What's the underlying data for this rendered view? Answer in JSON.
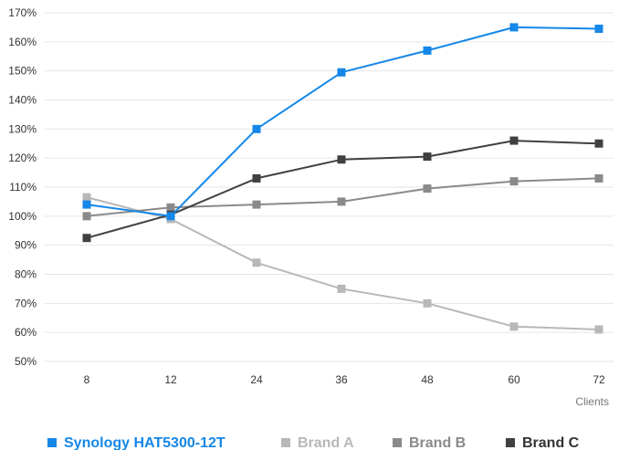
{
  "chart_data": {
    "type": "line",
    "title": "",
    "xlabel": "Clients",
    "ylabel": "",
    "x": [
      8,
      12,
      24,
      36,
      48,
      60,
      72
    ],
    "categories": [
      "8",
      "12",
      "24",
      "36",
      "48",
      "60",
      "72"
    ],
    "ylim": [
      50,
      170
    ],
    "yticks": [
      50,
      60,
      70,
      80,
      90,
      100,
      110,
      120,
      130,
      140,
      150,
      160,
      170
    ],
    "ytick_labels": [
      "50%",
      "60%",
      "70%",
      "80%",
      "90%",
      "100%",
      "110%",
      "120%",
      "130%",
      "140%",
      "150%",
      "160%",
      "170%"
    ],
    "y_unit": "%",
    "grid": true,
    "legend_position": "bottom",
    "series": [
      {
        "name": "Synology HAT5300-12T",
        "color": "#1487e8",
        "values": [
          104,
          100,
          130,
          149.5,
          157,
          165,
          164.5
        ]
      },
      {
        "name": "Brand A",
        "color": "#b8b8b8",
        "values": [
          106.5,
          99,
          84,
          75,
          70,
          62,
          61
        ]
      },
      {
        "name": "Brand B",
        "color": "#8a8a8a",
        "values": [
          100,
          103,
          104,
          105,
          109.5,
          112,
          113
        ]
      },
      {
        "name": "Brand C",
        "color": "#404040",
        "values": [
          92.5,
          100.5,
          113,
          119.5,
          120.5,
          126,
          125
        ]
      }
    ]
  }
}
